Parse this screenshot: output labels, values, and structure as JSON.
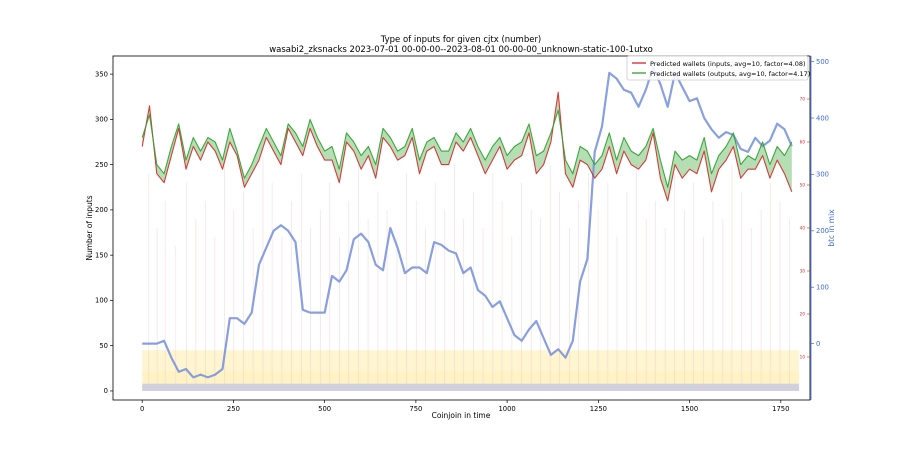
{
  "colors": {
    "inputs_line": "#d62728",
    "outputs_line": "#2ca02c",
    "btc_line": "#7b96dd",
    "small_axis": "#d62728",
    "btc_axis": "#4169e1",
    "fill_yellow": "#fff3c4",
    "fill_blue": "#a9b4f5",
    "spikes": "#f4c2c2"
  },
  "chart_data": {
    "type": "line",
    "title": "Type of inputs for given cjtx (number)",
    "subtitle": "wasabi2_zksnacks 2023-07-01 00-00-00--2023-08-01 00-00-00_unknown-static-100-1utxo",
    "xlabel": "Coinjoin in time",
    "ylabel": "Number of inputs",
    "y3label": "btc in mix",
    "xlim": [
      -80,
      1830
    ],
    "ylim": [
      -10,
      370
    ],
    "y2lim": [
      0,
      80
    ],
    "y3lim": [
      -100,
      510
    ],
    "xticks": [
      0,
      250,
      500,
      750,
      1000,
      1250,
      1500,
      1750
    ],
    "yticks": [
      0,
      50,
      100,
      150,
      200,
      250,
      300,
      350
    ],
    "y2ticks": [
      10,
      20,
      30,
      40,
      50,
      60,
      70
    ],
    "y3ticks": [
      0,
      100,
      200,
      300,
      400,
      500
    ],
    "legend_position": "top-right",
    "legend": [
      "Predicted wallets (inputs, avg=10, factor=4.08)",
      "Predicted wallets (outputs, avg=10, factor=4.17)"
    ],
    "series": [
      {
        "name": "Predicted wallets (inputs, avg=10, factor=4.08)",
        "axis": "left",
        "x": [
          0,
          20,
          40,
          60,
          80,
          100,
          120,
          140,
          160,
          180,
          200,
          220,
          240,
          260,
          280,
          300,
          320,
          340,
          360,
          380,
          400,
          420,
          440,
          460,
          480,
          500,
          520,
          540,
          560,
          580,
          600,
          620,
          640,
          660,
          680,
          700,
          720,
          740,
          760,
          780,
          800,
          820,
          840,
          860,
          880,
          900,
          920,
          940,
          960,
          980,
          1000,
          1020,
          1040,
          1060,
          1080,
          1100,
          1120,
          1140,
          1160,
          1180,
          1200,
          1220,
          1240,
          1260,
          1280,
          1300,
          1320,
          1340,
          1360,
          1380,
          1400,
          1420,
          1440,
          1460,
          1480,
          1500,
          1520,
          1540,
          1560,
          1580,
          1600,
          1620,
          1640,
          1660,
          1680,
          1700,
          1720,
          1740,
          1760,
          1780
        ],
        "values": [
          270,
          315,
          240,
          230,
          260,
          290,
          245,
          270,
          255,
          275,
          265,
          245,
          275,
          260,
          225,
          240,
          255,
          280,
          265,
          250,
          290,
          275,
          260,
          290,
          270,
          255,
          255,
          230,
          275,
          265,
          245,
          260,
          235,
          280,
          270,
          255,
          260,
          280,
          240,
          265,
          270,
          250,
          250,
          275,
          265,
          280,
          260,
          240,
          255,
          270,
          245,
          255,
          260,
          285,
          240,
          250,
          275,
          330,
          240,
          225,
          255,
          250,
          235,
          245,
          270,
          240,
          265,
          250,
          245,
          255,
          285,
          235,
          210,
          250,
          235,
          245,
          240,
          265,
          220,
          245,
          255,
          270,
          235,
          245,
          245,
          260,
          235,
          255,
          240,
          220
        ]
      },
      {
        "name": "Predicted wallets (outputs, avg=10, factor=4.17)",
        "axis": "left",
        "x": [
          0,
          20,
          40,
          60,
          80,
          100,
          120,
          140,
          160,
          180,
          200,
          220,
          240,
          260,
          280,
          300,
          320,
          340,
          360,
          380,
          400,
          420,
          440,
          460,
          480,
          500,
          520,
          540,
          560,
          580,
          600,
          620,
          640,
          660,
          680,
          700,
          720,
          740,
          760,
          780,
          800,
          820,
          840,
          860,
          880,
          900,
          920,
          940,
          960,
          980,
          1000,
          1020,
          1040,
          1060,
          1080,
          1100,
          1120,
          1140,
          1160,
          1180,
          1200,
          1220,
          1240,
          1260,
          1280,
          1300,
          1320,
          1340,
          1360,
          1380,
          1400,
          1420,
          1440,
          1460,
          1480,
          1500,
          1520,
          1540,
          1560,
          1580,
          1600,
          1620,
          1640,
          1660,
          1680,
          1700,
          1720,
          1740,
          1760,
          1780
        ],
        "values": [
          280,
          305,
          250,
          240,
          270,
          295,
          255,
          280,
          265,
          280,
          275,
          255,
          290,
          265,
          235,
          250,
          270,
          290,
          275,
          260,
          295,
          285,
          270,
          300,
          280,
          265,
          270,
          245,
          285,
          275,
          260,
          270,
          250,
          290,
          280,
          265,
          270,
          290,
          255,
          275,
          280,
          265,
          265,
          285,
          275,
          290,
          270,
          255,
          270,
          280,
          260,
          270,
          275,
          295,
          260,
          265,
          285,
          310,
          255,
          240,
          270,
          265,
          250,
          260,
          285,
          255,
          280,
          265,
          260,
          270,
          290,
          255,
          225,
          265,
          255,
          260,
          255,
          280,
          240,
          260,
          270,
          285,
          250,
          260,
          255,
          275,
          250,
          270,
          260,
          275
        ]
      },
      {
        "name": "",
        "axis": "right-btc",
        "x": [
          0,
          20,
          40,
          60,
          80,
          100,
          120,
          140,
          160,
          180,
          200,
          220,
          240,
          260,
          280,
          300,
          320,
          340,
          360,
          380,
          400,
          420,
          440,
          460,
          480,
          500,
          520,
          540,
          560,
          580,
          600,
          620,
          640,
          660,
          680,
          700,
          720,
          740,
          760,
          780,
          800,
          820,
          840,
          860,
          880,
          900,
          920,
          940,
          960,
          980,
          1000,
          1020,
          1040,
          1060,
          1080,
          1100,
          1120,
          1140,
          1160,
          1180,
          1200,
          1220,
          1240,
          1260,
          1280,
          1300,
          1320,
          1340,
          1360,
          1380,
          1400,
          1420,
          1440,
          1460,
          1480,
          1500,
          1520,
          1540,
          1560,
          1580,
          1600,
          1620,
          1640,
          1660,
          1680,
          1700,
          1720,
          1740,
          1760,
          1780
        ],
        "values": [
          0,
          0,
          0,
          5,
          -25,
          -50,
          -45,
          -60,
          -55,
          -60,
          -55,
          -45,
          45,
          45,
          35,
          55,
          140,
          170,
          200,
          210,
          200,
          180,
          60,
          55,
          55,
          55,
          120,
          110,
          130,
          185,
          195,
          180,
          140,
          130,
          205,
          170,
          125,
          135,
          135,
          125,
          180,
          175,
          165,
          160,
          125,
          135,
          95,
          85,
          65,
          75,
          45,
          15,
          5,
          25,
          40,
          10,
          -20,
          -10,
          -25,
          5,
          110,
          150,
          340,
          385,
          480,
          470,
          450,
          445,
          420,
          450,
          490,
          460,
          420,
          480,
          455,
          430,
          435,
          400,
          380,
          365,
          375,
          370,
          345,
          340,
          365,
          350,
          360,
          390,
          380,
          350
        ]
      }
    ],
    "spikes": {
      "x": [
        18,
        41,
        63,
        92,
        121,
        147,
        173,
        199,
        226,
        251,
        278,
        304,
        331,
        356,
        383,
        409,
        436,
        461,
        488,
        514,
        541,
        566,
        593,
        619,
        646,
        671,
        698,
        724,
        751,
        776,
        803,
        829,
        856,
        881,
        908,
        934,
        961,
        986,
        1013,
        1039,
        1066,
        1091,
        1118,
        1144,
        1171,
        1196,
        1223,
        1249,
        1276,
        1301,
        1328,
        1354,
        1381,
        1406,
        1433,
        1459,
        1486,
        1511,
        1538,
        1564,
        1591,
        1616,
        1643,
        1669,
        1696,
        1721,
        1748,
        1774
      ],
      "values": [
        240,
        180,
        210,
        160,
        230,
        190,
        210,
        170,
        250,
        200,
        220,
        180,
        260,
        230,
        170,
        210,
        240,
        180,
        200,
        230,
        170,
        210,
        250,
        190,
        220,
        200,
        170,
        240,
        210,
        180,
        230,
        200,
        250,
        190,
        220,
        180,
        240,
        210,
        170,
        230,
        200,
        190,
        250,
        220,
        180,
        210,
        240,
        200,
        230,
        170,
        220,
        250,
        190,
        210,
        180,
        240,
        200,
        230,
        170,
        210,
        190,
        250,
        220,
        180,
        200,
        230,
        210,
        190
      ]
    }
  }
}
